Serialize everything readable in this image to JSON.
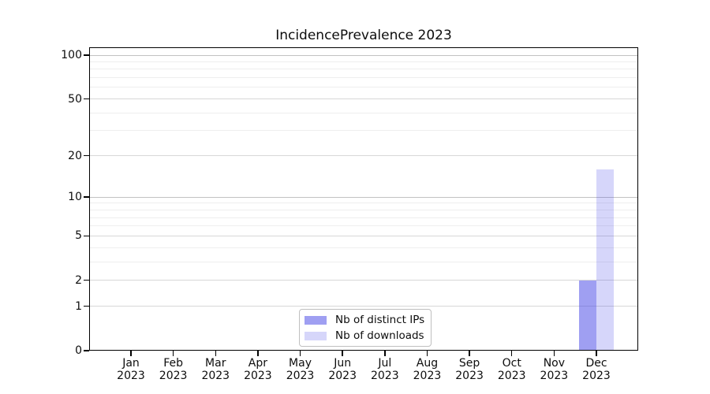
{
  "figure": {
    "background": "#ffffff",
    "frame_color": "#000000"
  },
  "chart_data": {
    "type": "bar",
    "title": "IncidencePrevalence 2023",
    "xlabel": "",
    "ylabel": "",
    "categories": [
      "Jan 2023",
      "Feb 2023",
      "Mar 2023",
      "Apr 2023",
      "May 2023",
      "Jun 2023",
      "Jul 2023",
      "Aug 2023",
      "Sep 2023",
      "Oct 2023",
      "Nov 2023",
      "Dec 2023"
    ],
    "series": [
      {
        "name": "Nb of distinct IPs",
        "color": "rgba(70,70,230,0.52)",
        "swatch_hex": "#a0a0f0",
        "values": [
          0,
          0,
          0,
          0,
          0,
          0,
          0,
          0,
          0,
          0,
          0,
          2
        ]
      },
      {
        "name": "Nb of downloads",
        "color": "rgba(70,70,230,0.22)",
        "swatch_hex": "#d6d6f8",
        "values": [
          0,
          0,
          0,
          0,
          0,
          0,
          0,
          0,
          0,
          0,
          0,
          16
        ]
      }
    ],
    "yscale": "log1p",
    "ylim": [
      0,
      113
    ],
    "yticks": [
      0,
      1,
      2,
      5,
      10,
      20,
      50,
      100
    ],
    "minor_gridlines": [
      3,
      4,
      6,
      7,
      8,
      9,
      30,
      40,
      60,
      70,
      80,
      90
    ],
    "decade_gridlines": [
      10,
      100
    ],
    "grid": true,
    "legend_position": "lower-center-inside"
  },
  "legend": {
    "entries": [
      {
        "label": "Nb of distinct IPs"
      },
      {
        "label": "Nb of downloads"
      }
    ]
  }
}
